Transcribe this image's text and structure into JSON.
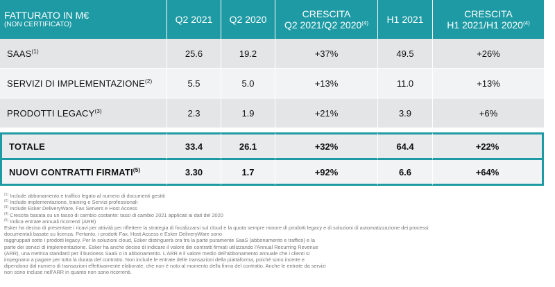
{
  "header": {
    "col0_main": "FATTURATO IN M€",
    "col0_sub": "(NON CERTIFICATO)",
    "col1": "Q2 2021",
    "col2": "Q2 2020",
    "col3_line1": "CRESCITA",
    "col3_line2": "Q2 2021/Q2 2020",
    "col3_note": "(4)",
    "col4": "H1 2021",
    "col5_line1": "CRESCITA",
    "col5_line2": "H1 2021/H1 2020",
    "col5_note": "(4)"
  },
  "rows": [
    {
      "label": "SAAS",
      "note": "(1)",
      "q2_2021": "25.6",
      "q2_2020": "19.2",
      "growth_q2": "+37%",
      "h1_2021": "49.5",
      "growth_h1": "+26%"
    },
    {
      "label": "SERVIZI DI IMPLEMENTAZIONE",
      "note": "(2)",
      "q2_2021": "5.5",
      "q2_2020": "5.0",
      "growth_q2": "+13%",
      "h1_2021": "11.0",
      "growth_h1": "+13%"
    },
    {
      "label": "PRODOTTI LEGACY",
      "note": "(3)",
      "q2_2021": "2.3",
      "q2_2020": "1.9",
      "growth_q2": "+21%",
      "h1_2021": "3.9",
      "growth_h1": "+6%"
    }
  ],
  "total": {
    "label": "TOTALE",
    "q2_2021": "33.4",
    "q2_2020": "26.1",
    "growth_q2": "+32%",
    "h1_2021": "64.4",
    "growth_h1": "+22%"
  },
  "new_contracts": {
    "label": "NUOVI CONTRATTI FIRMATI",
    "note": "(5)",
    "q2_2021": "3.30",
    "q2_2020": "1.7",
    "growth_q2": "+92%",
    "h1_2021": "6.6",
    "growth_h1": "+64%"
  },
  "footnotes": [
    {
      "num": "(1)",
      "text": " Include abbonamento e traffico legato al numero di documenti gestiti"
    },
    {
      "num": "(2)",
      "text": " Include implementazione, training e Servizi professionali"
    },
    {
      "num": "(3)",
      "text": " Include Esker DeliveryWare, Fax Servers e Host Access"
    },
    {
      "num": "(4)",
      "text": " Crescita basata su un tasso di cambio costante: tassi di cambio 2021 applicati ai dati del 2020"
    },
    {
      "num": "(5)",
      "text": " Indica entrate annuali ricorrenti (ARR)"
    }
  ],
  "paragraph": [
    "Esker ha deciso di presentare i ricavi per attività per riflettere la strategia di focalizzarsi sul cloud e la quota sempre minore di prodotti legacy e di soluzioni di automatizzazione dei processi",
    "documentali basate su licenza. Pertanto, i prodotti Fax, Host Access e Esker DeliveryWare sono",
    "raggruppati sotto i prodotti legacy. Per le soluzioni cloud, Esker distinguerà ora tra la parte puramente SaaS (abbonamento e traffico) e la",
    "parte dei servizi di implementazione. Esker ha anche deciso di indicare il valore dei contratti firmati utilizzando l'Annual Recurring Revenue",
    "(ARR), una metrica standard per il business SaaS o in abbonamento. L'ARR è il valore medio dell'abbonamento annuale che i clienti si",
    "impegnano a pagare per tutta la durata del contratto. Non include le entrate delle transazioni della piattaforma, poiché sono incerte e",
    "dipendono dal numero di transazioni effettivamente elaborate, che non è noto al momento della firma del contratto. Anche le entrate da servizi",
    "non sono incluse nell'ARR in quanto non sono ricorrenti."
  ]
}
